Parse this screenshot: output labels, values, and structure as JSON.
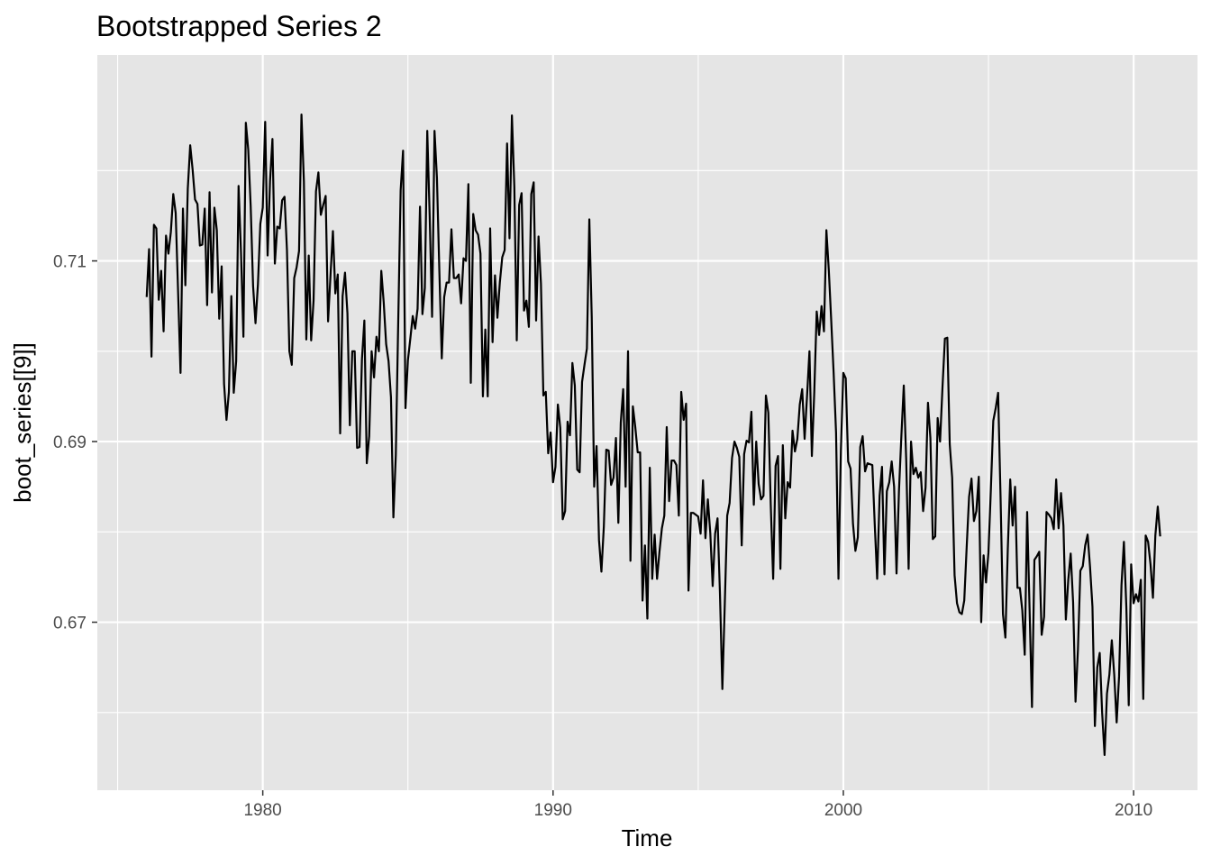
{
  "chart_data": {
    "type": "line",
    "title": "Bootstrapped Series 2",
    "xlabel": "Time",
    "ylabel": "boot_series[[9]]",
    "xlim": [
      1974.3,
      2012.2
    ],
    "ylim": [
      0.6514,
      0.7328
    ],
    "x_ticks": [
      1980,
      1990,
      2000,
      2010
    ],
    "y_ticks": [
      0.67,
      0.69,
      0.71
    ],
    "grid": true,
    "background": "#e5e5e5",
    "grid_color": "#ffffff",
    "line_color": "#000000",
    "x_start": 1976.0,
    "x_step": 0.08333,
    "values": [
      0.706,
      0.7113,
      0.6994,
      0.714,
      0.7136,
      0.7057,
      0.7089,
      0.7022,
      0.7128,
      0.7108,
      0.7132,
      0.7174,
      0.7153,
      0.7065,
      0.6976,
      0.7158,
      0.7073,
      0.718,
      0.7228,
      0.7201,
      0.7168,
      0.7163,
      0.7117,
      0.7118,
      0.7158,
      0.7051,
      0.7176,
      0.7065,
      0.7159,
      0.7134,
      0.7036,
      0.7094,
      0.6964,
      0.6924,
      0.6955,
      0.7061,
      0.6954,
      0.6989,
      0.7183,
      0.7109,
      0.7016,
      0.7253,
      0.7223,
      0.7161,
      0.7072,
      0.7031,
      0.7074,
      0.7141,
      0.7159,
      0.7254,
      0.7106,
      0.7188,
      0.7235,
      0.7097,
      0.7138,
      0.7136,
      0.7167,
      0.7171,
      0.7112,
      0.7,
      0.6985,
      0.7081,
      0.7093,
      0.7111,
      0.7262,
      0.7188,
      0.7013,
      0.7106,
      0.7012,
      0.7056,
      0.7177,
      0.7198,
      0.7151,
      0.7162,
      0.7172,
      0.7033,
      0.7084,
      0.7133,
      0.7064,
      0.7085,
      0.6909,
      0.7061,
      0.7087,
      0.7042,
      0.6918,
      0.7,
      0.7,
      0.6893,
      0.6894,
      0.6991,
      0.7034,
      0.6876,
      0.6906,
      0.7,
      0.6971,
      0.7016,
      0.7,
      0.7089,
      0.7054,
      0.7008,
      0.6989,
      0.6949,
      0.6816,
      0.6885,
      0.7033,
      0.7178,
      0.7222,
      0.6937,
      0.699,
      0.7014,
      0.7039,
      0.7025,
      0.7047,
      0.716,
      0.7041,
      0.707,
      0.7244,
      0.715,
      0.7038,
      0.7244,
      0.7192,
      0.7089,
      0.6992,
      0.706,
      0.7076,
      0.7076,
      0.7135,
      0.7081,
      0.7081,
      0.7085,
      0.7053,
      0.7103,
      0.71,
      0.7185,
      0.6965,
      0.7152,
      0.7134,
      0.7129,
      0.7108,
      0.695,
      0.7024,
      0.695,
      0.7136,
      0.701,
      0.7084,
      0.7037,
      0.7076,
      0.7104,
      0.7112,
      0.723,
      0.7125,
      0.7261,
      0.7182,
      0.7012,
      0.7162,
      0.7175,
      0.7045,
      0.7056,
      0.7027,
      0.7174,
      0.7187,
      0.7034,
      0.7127,
      0.7075,
      0.6951,
      0.6955,
      0.6887,
      0.691,
      0.6855,
      0.6872,
      0.6941,
      0.6915,
      0.6814,
      0.6823,
      0.6922,
      0.6907,
      0.6987,
      0.6962,
      0.6869,
      0.6866,
      0.6966,
      0.6985,
      0.7003,
      0.7146,
      0.7038,
      0.685,
      0.6895,
      0.6791,
      0.6756,
      0.6806,
      0.6891,
      0.689,
      0.6852,
      0.686,
      0.6904,
      0.681,
      0.6921,
      0.6958,
      0.685,
      0.7,
      0.6768,
      0.6939,
      0.6916,
      0.6888,
      0.6888,
      0.6724,
      0.6785,
      0.6704,
      0.6871,
      0.6748,
      0.6797,
      0.6748,
      0.6778,
      0.6804,
      0.6818,
      0.6916,
      0.6834,
      0.6879,
      0.6879,
      0.6874,
      0.6818,
      0.6955,
      0.6924,
      0.6942,
      0.6735,
      0.6821,
      0.6821,
      0.6819,
      0.6817,
      0.6798,
      0.6857,
      0.6793,
      0.6836,
      0.6799,
      0.674,
      0.6798,
      0.6815,
      0.6732,
      0.6626,
      0.672,
      0.6818,
      0.6832,
      0.6882,
      0.69,
      0.6893,
      0.6883,
      0.6785,
      0.6886,
      0.6901,
      0.6899,
      0.6933,
      0.683,
      0.69,
      0.6853,
      0.6836,
      0.684,
      0.6951,
      0.6932,
      0.683,
      0.6748,
      0.6873,
      0.6884,
      0.6759,
      0.6896,
      0.6815,
      0.6855,
      0.6849,
      0.6912,
      0.6889,
      0.6903,
      0.6941,
      0.6958,
      0.6903,
      0.695,
      0.7,
      0.6884,
      0.6955,
      0.7044,
      0.7018,
      0.705,
      0.7022,
      0.7134,
      0.709,
      0.7034,
      0.6976,
      0.691,
      0.6748,
      0.689,
      0.6976,
      0.697,
      0.6878,
      0.687,
      0.6809,
      0.6779,
      0.6794,
      0.6894,
      0.6906,
      0.6867,
      0.6876,
      0.6875,
      0.6874,
      0.6808,
      0.6748,
      0.684,
      0.6872,
      0.6753,
      0.6845,
      0.6855,
      0.6878,
      0.685,
      0.6754,
      0.6845,
      0.6906,
      0.6962,
      0.688,
      0.6759,
      0.69,
      0.6864,
      0.6871,
      0.686,
      0.6866,
      0.6823,
      0.6849,
      0.6943,
      0.6904,
      0.6792,
      0.6795,
      0.6926,
      0.69,
      0.696,
      0.7014,
      0.7015,
      0.6897,
      0.686,
      0.6752,
      0.6721,
      0.6711,
      0.6709,
      0.6724,
      0.6783,
      0.6839,
      0.6859,
      0.6812,
      0.6823,
      0.6861,
      0.67,
      0.6774,
      0.6744,
      0.6777,
      0.6847,
      0.6923,
      0.6937,
      0.6954,
      0.6839,
      0.6709,
      0.6683,
      0.6781,
      0.6858,
      0.6807,
      0.685,
      0.6738,
      0.6738,
      0.6713,
      0.6664,
      0.6822,
      0.6715,
      0.6606,
      0.6769,
      0.6773,
      0.6778,
      0.6686,
      0.6706,
      0.6822,
      0.6819,
      0.6815,
      0.6803,
      0.6858,
      0.6804,
      0.6843,
      0.6807,
      0.6703,
      0.6747,
      0.6776,
      0.6722,
      0.6612,
      0.667,
      0.6757,
      0.6762,
      0.6785,
      0.6797,
      0.6761,
      0.6717,
      0.6585,
      0.665,
      0.6666,
      0.66,
      0.6553,
      0.6621,
      0.6642,
      0.668,
      0.6642,
      0.6589,
      0.664,
      0.6741,
      0.6789,
      0.6717,
      0.6608,
      0.6764,
      0.6721,
      0.6731,
      0.6723,
      0.6747,
      0.6615,
      0.6796,
      0.6789,
      0.6764,
      0.6727,
      0.6796,
      0.6828,
      0.6795
    ]
  }
}
